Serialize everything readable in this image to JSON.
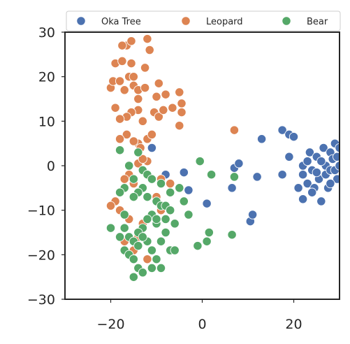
{
  "chart_data": {
    "type": "scatter",
    "title": "",
    "xlabel": "",
    "ylabel": "",
    "xlim": [
      -30,
      30
    ],
    "ylim": [
      -30,
      30
    ],
    "x_ticks": [
      -20,
      0,
      20
    ],
    "x_tick_labels": [
      "−20",
      "0",
      "20"
    ],
    "y_ticks": [
      30,
      20,
      10,
      0,
      -10,
      -20,
      -30
    ],
    "y_tick_labels": [
      "30",
      "20",
      "10",
      "0",
      "−10",
      "−20",
      "−30"
    ],
    "grid": false,
    "legend_position": "top",
    "series": [
      {
        "name": "Oka Tree",
        "color": "#4c72b0",
        "points": [
          [
            -11,
            4
          ],
          [
            -8,
            -2
          ],
          [
            -4,
            -1.5
          ],
          [
            -3,
            -5.5
          ],
          [
            1,
            -8.5
          ],
          [
            7,
            -0.5
          ],
          [
            8,
            0.5
          ],
          [
            6.5,
            -5
          ],
          [
            10.5,
            -12.5
          ],
          [
            12,
            -2.5
          ],
          [
            11,
            -11
          ],
          [
            13,
            6
          ],
          [
            17.5,
            8
          ],
          [
            19,
            7
          ],
          [
            20,
            6.5
          ],
          [
            19,
            2
          ],
          [
            17.5,
            -2
          ],
          [
            21,
            -5
          ],
          [
            22,
            0
          ],
          [
            22,
            -7.5
          ],
          [
            23,
            -4
          ],
          [
            23.5,
            3
          ],
          [
            24,
            -1
          ],
          [
            24.5,
            -5
          ],
          [
            25,
            2
          ],
          [
            25.5,
            -3
          ],
          [
            26,
            -8
          ],
          [
            26.5,
            4
          ],
          [
            27,
            0
          ],
          [
            27,
            -2
          ],
          [
            27.5,
            -5
          ],
          [
            28,
            3
          ],
          [
            28,
            -1
          ],
          [
            28.5,
            1.5
          ],
          [
            29,
            5
          ],
          [
            29,
            -1
          ],
          [
            29.5,
            2
          ],
          [
            29.5,
            -3
          ],
          [
            30,
            0
          ],
          [
            30,
            4
          ],
          [
            22,
            -2
          ],
          [
            23,
            1
          ],
          [
            24,
            -6
          ],
          [
            25,
            -1.5
          ],
          [
            26,
            1
          ],
          [
            28,
            -4
          ]
        ]
      },
      {
        "name": "Leopard",
        "color": "#dd8452",
        "points": [
          [
            -16.5,
            27
          ],
          [
            -17.5,
            27
          ],
          [
            -15.5,
            28
          ],
          [
            -12,
            28.5
          ],
          [
            -11.5,
            26
          ],
          [
            -19,
            23
          ],
          [
            -17.5,
            23.5
          ],
          [
            -15.5,
            23
          ],
          [
            -20,
            17.5
          ],
          [
            -19.5,
            19
          ],
          [
            -16,
            20
          ],
          [
            -15,
            18
          ],
          [
            -17,
            17
          ],
          [
            -14,
            17
          ],
          [
            -12.5,
            17.5
          ],
          [
            -15,
            20
          ],
          [
            -9.5,
            18.5
          ],
          [
            -8,
            16
          ],
          [
            -5,
            16.5
          ],
          [
            -4.5,
            14
          ],
          [
            -4.5,
            12
          ],
          [
            -6.5,
            13
          ],
          [
            -10,
            15.5
          ],
          [
            -10.5,
            12
          ],
          [
            -9.5,
            11
          ],
          [
            -14,
            15
          ],
          [
            -14,
            12.5
          ],
          [
            -15.5,
            12
          ],
          [
            -16.5,
            11
          ],
          [
            -18,
            10.5
          ],
          [
            -19,
            13
          ],
          [
            -13,
            10
          ],
          [
            -16.5,
            7
          ],
          [
            -18,
            6
          ],
          [
            -14,
            5
          ],
          [
            -12,
            6
          ],
          [
            -13.5,
            4
          ],
          [
            -11,
            7
          ],
          [
            -12,
            1
          ],
          [
            -14,
            0.5
          ],
          [
            -16,
            -2
          ],
          [
            -17,
            -3
          ],
          [
            -15,
            -4
          ],
          [
            -19,
            -8
          ],
          [
            -20,
            -9
          ],
          [
            -18,
            -10
          ],
          [
            -16,
            -12
          ],
          [
            -13,
            -13
          ],
          [
            -14,
            -16
          ],
          [
            -17,
            -17
          ],
          [
            -15,
            -19
          ],
          [
            -12,
            -21
          ],
          [
            -9,
            -10
          ],
          [
            -9,
            -3
          ],
          [
            -7,
            -4
          ],
          [
            -5,
            9
          ],
          [
            7,
            8
          ],
          [
            -13,
            1.5
          ],
          [
            -15,
            5.5
          ],
          [
            -10,
            -7
          ],
          [
            -8.5,
            12.5
          ],
          [
            -12.5,
            22
          ],
          [
            -18,
            19
          ]
        ]
      },
      {
        "name": "Bear",
        "color": "#55a868",
        "points": [
          [
            -16,
            0
          ],
          [
            -13,
            -1
          ],
          [
            -12,
            -2
          ],
          [
            -11,
            -3
          ],
          [
            -9,
            -4
          ],
          [
            -13,
            -5
          ],
          [
            -14,
            -6
          ],
          [
            -15,
            -7
          ],
          [
            -12,
            -7
          ],
          [
            -10,
            -8
          ],
          [
            -9,
            -9
          ],
          [
            -8,
            -9
          ],
          [
            -7,
            -10
          ],
          [
            -11,
            -11
          ],
          [
            -12,
            -12
          ],
          [
            -10,
            -13
          ],
          [
            -13,
            -14
          ],
          [
            -14,
            -15
          ],
          [
            -16,
            -16
          ],
          [
            -15,
            -17
          ],
          [
            -14,
            -18
          ],
          [
            -17,
            -19
          ],
          [
            -16,
            -20
          ],
          [
            -15,
            -21
          ],
          [
            -14,
            -23
          ],
          [
            -13,
            -24
          ],
          [
            -15,
            -25
          ],
          [
            -11,
            -23
          ],
          [
            -9,
            -23
          ],
          [
            -10,
            -21
          ],
          [
            -11,
            -19
          ],
          [
            -12,
            -17
          ],
          [
            -13,
            -16
          ],
          [
            -9,
            -17
          ],
          [
            -8,
            -15
          ],
          [
            -10,
            -12
          ],
          [
            -8,
            -12
          ],
          [
            -6,
            -13
          ],
          [
            -7,
            -19
          ],
          [
            -6,
            -19
          ],
          [
            -5,
            -5
          ],
          [
            -4,
            -8
          ],
          [
            -7,
            -6
          ],
          [
            -17,
            -5
          ],
          [
            -18,
            -6
          ],
          [
            -17,
            -11
          ],
          [
            -17,
            -14
          ],
          [
            -18,
            -16
          ],
          [
            -20,
            -14
          ],
          [
            -18,
            3.5
          ],
          [
            -15,
            -3
          ],
          [
            -14,
            3
          ],
          [
            -3,
            -11
          ],
          [
            -1,
            -18
          ],
          [
            1,
            -17
          ],
          [
            1.5,
            -15
          ],
          [
            2,
            -2
          ],
          [
            -0.5,
            1
          ],
          [
            7,
            -2.5
          ],
          [
            6.5,
            -15.5
          ]
        ]
      }
    ]
  }
}
